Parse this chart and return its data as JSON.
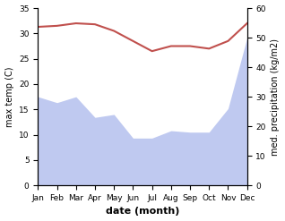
{
  "months": [
    "Jan",
    "Feb",
    "Mar",
    "Apr",
    "May",
    "Jun",
    "Jul",
    "Aug",
    "Sep",
    "Oct",
    "Nov",
    "Dec"
  ],
  "temperature": [
    31.3,
    31.5,
    32.0,
    31.8,
    30.5,
    28.5,
    26.5,
    27.5,
    27.5,
    27.0,
    28.5,
    32.0
  ],
  "precipitation": [
    30,
    28,
    30,
    23,
    24,
    16,
    16,
    18.5,
    18,
    18,
    26,
    50
  ],
  "temp_color": "#c0504d",
  "precip_fill_color": "#bfc9f0",
  "temp_ylim": [
    0,
    35
  ],
  "precip_ylim": [
    0,
    60
  ],
  "temp_yticks": [
    0,
    5,
    10,
    15,
    20,
    25,
    30,
    35
  ],
  "precip_yticks": [
    0,
    10,
    20,
    30,
    40,
    50,
    60
  ],
  "xlabel": "date (month)",
  "ylabel_left": "max temp (C)",
  "ylabel_right": "med. precipitation (kg/m2)",
  "figsize": [
    3.18,
    2.47
  ],
  "dpi": 100
}
